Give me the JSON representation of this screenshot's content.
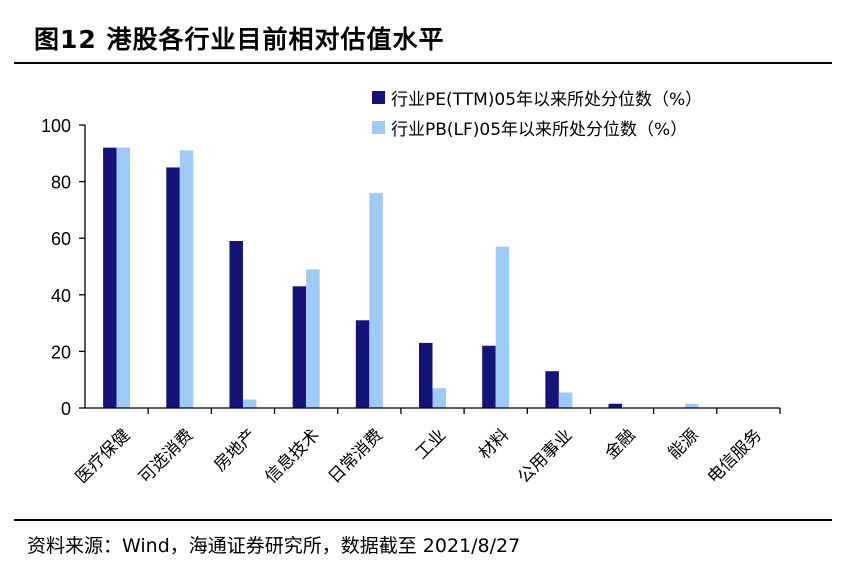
{
  "header": {
    "title": "图12 港股各行业目前相对估值水平"
  },
  "footer": {
    "source": "资料来源：Wind，海通证券研究所，数据截至 2021/8/27"
  },
  "colors": {
    "pe": "#14137a",
    "pb": "#9ecbf5"
  },
  "chart_data": {
    "type": "bar",
    "categories": [
      "医疗保健",
      "可选消费",
      "房地产",
      "信息技术",
      "日常消费",
      "工业",
      "材料",
      "公用事业",
      "金融",
      "能源",
      "电信服务"
    ],
    "series": [
      {
        "name": "行业PE(TTM)05年以来所处分位数（%）",
        "values": [
          92,
          85,
          59,
          43,
          31,
          23,
          22,
          13,
          1.5,
          0,
          0
        ]
      },
      {
        "name": "行业PB(LF)05年以来所处分位数（%）",
        "values": [
          92,
          91,
          3,
          49,
          76,
          7,
          57,
          5.5,
          0,
          1.5,
          0
        ]
      }
    ],
    "yticks": [
      "0",
      "20",
      "40",
      "60",
      "80",
      "100"
    ],
    "ylim": [
      0,
      100
    ],
    "legend_position": "top-right",
    "grid": false
  }
}
